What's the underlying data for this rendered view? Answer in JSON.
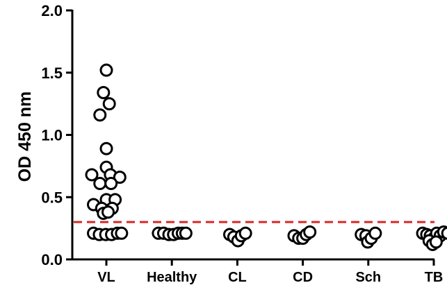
{
  "chart_data": {
    "type": "scatter",
    "title": "",
    "xlabel": "",
    "ylabel": "OD 450 nm",
    "categories": [
      "VL",
      "Healthy",
      "CL",
      "CD",
      "Sch",
      "TB"
    ],
    "ylim": [
      0,
      2.0
    ],
    "yticks": [
      "0.0",
      "0.5",
      "1.0",
      "1.5",
      "2.0"
    ],
    "cutoff": 0.3,
    "grid": false,
    "legend": "none",
    "colors": {
      "marker_edge": "#000000",
      "marker_fill": "#ffffff",
      "axis": "#000000",
      "cutoff_line": "#d62828"
    },
    "groups": [
      {
        "category": "VL",
        "points": [
          {
            "j": 0.0,
            "y": 1.52
          },
          {
            "j": -0.1,
            "y": 1.34
          },
          {
            "j": 0.1,
            "y": 1.25
          },
          {
            "j": -0.22,
            "y": 1.16
          },
          {
            "j": 0.0,
            "y": 0.89
          },
          {
            "j": 0.0,
            "y": 0.74
          },
          {
            "j": -0.5,
            "y": 0.68
          },
          {
            "j": 0.14,
            "y": 0.68
          },
          {
            "j": 0.46,
            "y": 0.66
          },
          {
            "j": -0.22,
            "y": 0.61
          },
          {
            "j": 0.16,
            "y": 0.61
          },
          {
            "j": -0.44,
            "y": 0.44
          },
          {
            "j": 0.0,
            "y": 0.48
          },
          {
            "j": 0.3,
            "y": 0.48
          },
          {
            "j": -0.16,
            "y": 0.41
          },
          {
            "j": 0.2,
            "y": 0.41
          },
          {
            "j": -0.1,
            "y": 0.37
          },
          {
            "j": 0.06,
            "y": 0.38
          },
          {
            "j": -0.44,
            "y": 0.21
          },
          {
            "j": -0.24,
            "y": 0.2
          },
          {
            "j": -0.02,
            "y": 0.2
          },
          {
            "j": 0.18,
            "y": 0.2
          },
          {
            "j": 0.38,
            "y": 0.21
          },
          {
            "j": 0.52,
            "y": 0.21
          }
        ]
      },
      {
        "category": "Healthy",
        "points": [
          {
            "j": -0.46,
            "y": 0.21
          },
          {
            "j": -0.28,
            "y": 0.21
          },
          {
            "j": -0.1,
            "y": 0.2
          },
          {
            "j": 0.06,
            "y": 0.2
          },
          {
            "j": 0.22,
            "y": 0.21
          },
          {
            "j": 0.36,
            "y": 0.21
          },
          {
            "j": 0.48,
            "y": 0.21
          }
        ]
      },
      {
        "category": "CL",
        "points": [
          {
            "j": -0.26,
            "y": 0.2
          },
          {
            "j": -0.12,
            "y": 0.18
          },
          {
            "j": 0.02,
            "y": 0.15
          },
          {
            "j": 0.14,
            "y": 0.19
          },
          {
            "j": 0.28,
            "y": 0.21
          }
        ]
      },
      {
        "category": "CD",
        "points": [
          {
            "j": -0.3,
            "y": 0.19
          },
          {
            "j": -0.14,
            "y": 0.17
          },
          {
            "j": 0.0,
            "y": 0.17
          },
          {
            "j": 0.12,
            "y": 0.2
          },
          {
            "j": 0.24,
            "y": 0.22
          }
        ]
      },
      {
        "category": "Sch",
        "points": [
          {
            "j": -0.24,
            "y": 0.2
          },
          {
            "j": -0.08,
            "y": 0.19
          },
          {
            "j": -0.02,
            "y": 0.14
          },
          {
            "j": 0.1,
            "y": 0.17
          },
          {
            "j": 0.24,
            "y": 0.21
          }
        ]
      },
      {
        "category": "TB",
        "points": [
          {
            "j": -0.38,
            "y": 0.21
          },
          {
            "j": -0.24,
            "y": 0.2
          },
          {
            "j": -0.12,
            "y": 0.19
          },
          {
            "j": 0.0,
            "y": 0.17
          },
          {
            "j": 0.1,
            "y": 0.21
          },
          {
            "j": 0.22,
            "y": 0.19
          },
          {
            "j": 0.34,
            "y": 0.22
          },
          {
            "j": 0.48,
            "y": 0.21
          },
          {
            "j": -0.16,
            "y": 0.15
          },
          {
            "j": -0.04,
            "y": 0.12
          },
          {
            "j": 0.08,
            "y": 0.14
          }
        ]
      }
    ]
  }
}
